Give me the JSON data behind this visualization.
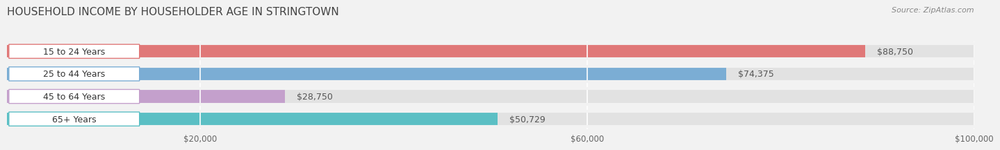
{
  "title": "HOUSEHOLD INCOME BY HOUSEHOLDER AGE IN STRINGTOWN",
  "source": "Source: ZipAtlas.com",
  "categories": [
    "15 to 24 Years",
    "25 to 44 Years",
    "45 to 64 Years",
    "65+ Years"
  ],
  "values": [
    88750,
    74375,
    28750,
    50729
  ],
  "bar_colors": [
    "#E07878",
    "#7BADD4",
    "#C4A0CC",
    "#5BBFC4"
  ],
  "value_labels": [
    "$88,750",
    "$74,375",
    "$28,750",
    "$50,729"
  ],
  "xlim": [
    0,
    100000
  ],
  "xticks": [
    20000,
    60000,
    100000
  ],
  "xtick_labels": [
    "$20,000",
    "$60,000",
    "$100,000"
  ],
  "bar_height": 0.68,
  "background_color": "#f2f2f2",
  "bar_bg_color": "#e2e2e2",
  "title_fontsize": 11,
  "source_fontsize": 8,
  "label_fontsize": 9,
  "value_fontsize": 9
}
